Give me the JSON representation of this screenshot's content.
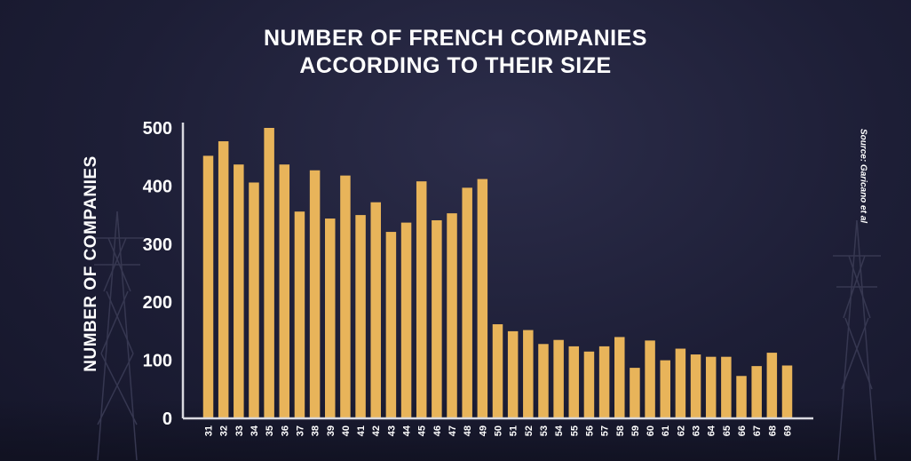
{
  "chart_data": {
    "type": "bar",
    "title_line1": "NUMBER OF FRENCH COMPANIES",
    "title_line2": "ACCORDING TO THEIR SIZE",
    "xlabel": "",
    "ylabel": "NUMBER OF COMPANIES",
    "source": "Source: Garicano et al",
    "ylim": [
      0,
      500
    ],
    "yticks": [
      0,
      100,
      200,
      300,
      400,
      500
    ],
    "grid": false,
    "bar_color": "#e8b45a",
    "axis_color": "#d9d9e0",
    "categories": [
      "31",
      "32",
      "33",
      "34",
      "35",
      "36",
      "37",
      "38",
      "39",
      "40",
      "41",
      "42",
      "43",
      "44",
      "45",
      "46",
      "47",
      "48",
      "49",
      "50",
      "51",
      "52",
      "53",
      "54",
      "55",
      "56",
      "57",
      "58",
      "59",
      "60",
      "61",
      "62",
      "63",
      "64",
      "65",
      "66",
      "67",
      "68",
      "69"
    ],
    "values": [
      452,
      477,
      437,
      406,
      500,
      437,
      356,
      427,
      344,
      418,
      350,
      372,
      321,
      337,
      408,
      341,
      353,
      397,
      412,
      162,
      150,
      152,
      128,
      135,
      124,
      115,
      124,
      140,
      87,
      134,
      100,
      120,
      110,
      106,
      106,
      73,
      90,
      113,
      91
    ]
  }
}
